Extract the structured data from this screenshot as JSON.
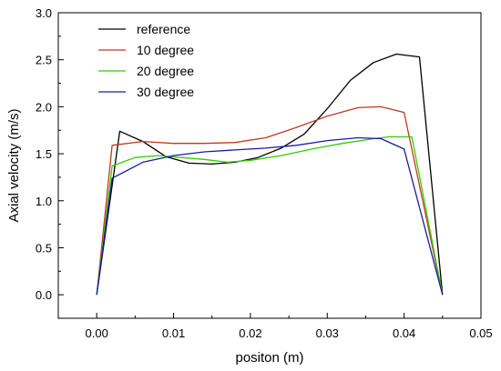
{
  "chart_data": {
    "type": "line",
    "title": "",
    "xlabel": "positon (m)",
    "ylabel": "Axial velocity (m/s)",
    "xlim": [
      -0.005,
      0.05
    ],
    "ylim": [
      -0.25,
      3.0
    ],
    "xticks": [
      0.0,
      0.01,
      0.02,
      0.03,
      0.04,
      0.05
    ],
    "xtick_labels": [
      "0.00",
      "0.01",
      "0.02",
      "0.03",
      "0.04",
      "0.05"
    ],
    "yticks": [
      0.0,
      0.5,
      1.0,
      1.5,
      2.0,
      2.5,
      3.0
    ],
    "ytick_labels": [
      "0.0",
      "0.5",
      "1.0",
      "1.5",
      "2.0",
      "2.5",
      "3.0"
    ],
    "grid": false,
    "legend_position": "top-left",
    "series": [
      {
        "name": "reference",
        "color": "#000000",
        "x": [
          0.0,
          0.003,
          0.006,
          0.009,
          0.012,
          0.015,
          0.018,
          0.021,
          0.024,
          0.027,
          0.03,
          0.033,
          0.036,
          0.039,
          0.042,
          0.045
        ],
        "y": [
          0.0,
          1.74,
          1.63,
          1.47,
          1.4,
          1.39,
          1.41,
          1.46,
          1.56,
          1.71,
          1.98,
          2.28,
          2.47,
          2.56,
          2.53,
          0.0
        ]
      },
      {
        "name": "10 degree",
        "color": "#c0391b",
        "x": [
          0.0,
          0.002,
          0.006,
          0.01,
          0.014,
          0.018,
          0.022,
          0.026,
          0.03,
          0.034,
          0.037,
          0.04,
          0.045
        ],
        "y": [
          0.0,
          1.59,
          1.63,
          1.61,
          1.61,
          1.62,
          1.67,
          1.78,
          1.9,
          1.99,
          2.0,
          1.94,
          0.0
        ]
      },
      {
        "name": "20 degree",
        "color": "#33cc00",
        "x": [
          0.0,
          0.002,
          0.005,
          0.008,
          0.011,
          0.014,
          0.017,
          0.02,
          0.024,
          0.028,
          0.032,
          0.036,
          0.038,
          0.041,
          0.045
        ],
        "y": [
          0.0,
          1.37,
          1.46,
          1.48,
          1.46,
          1.44,
          1.41,
          1.43,
          1.48,
          1.55,
          1.61,
          1.66,
          1.68,
          1.68,
          0.0
        ]
      },
      {
        "name": "30 degree",
        "color": "#1a1aaa",
        "x": [
          0.0,
          0.002,
          0.006,
          0.01,
          0.014,
          0.018,
          0.022,
          0.026,
          0.03,
          0.034,
          0.037,
          0.04,
          0.045
        ],
        "y": [
          0.0,
          1.24,
          1.41,
          1.48,
          1.52,
          1.54,
          1.56,
          1.59,
          1.64,
          1.67,
          1.66,
          1.55,
          0.0
        ]
      }
    ]
  }
}
